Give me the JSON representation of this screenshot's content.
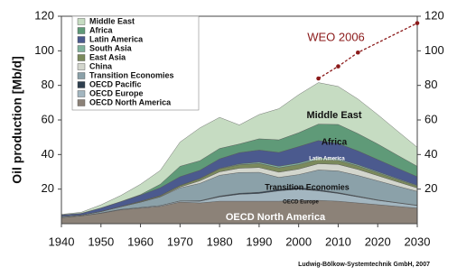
{
  "chart_data": {
    "type": "stacked_area",
    "ylabel": "Oil production [Mb/d]",
    "source": "Ludwig-Bölkow-Systemtechnik GmbH, 2007",
    "x": [
      1940,
      1945,
      1950,
      1955,
      1960,
      1965,
      1970,
      1975,
      1980,
      1985,
      1990,
      1995,
      2000,
      2005,
      2010,
      2015,
      2020,
      2025,
      2030
    ],
    "xlim": [
      1940,
      2030
    ],
    "xticks": [
      1940,
      1950,
      1960,
      1970,
      1980,
      1990,
      2000,
      2010,
      2020,
      2030
    ],
    "ylim": [
      0,
      120
    ],
    "yticks": [
      20,
      40,
      60,
      80,
      100,
      120
    ],
    "y2lim": [
      0,
      120
    ],
    "y2ticks": [
      20,
      40,
      60,
      80,
      100,
      120
    ],
    "legend": "upper left",
    "series": [
      {
        "name": "OECD North America",
        "color": "#8c8278",
        "values": [
          3.5,
          4.5,
          6,
          8,
          9,
          10,
          12.5,
          12,
          13,
          13,
          13,
          13,
          13.5,
          13.5,
          13,
          12,
          11,
          10,
          9
        ]
      },
      {
        "name": "OECD Europe",
        "color": "#a3b6c0",
        "values": [
          0.1,
          0.1,
          0.2,
          0.3,
          0.4,
          0.5,
          0.6,
          1,
          2.5,
          4,
          4.5,
          6,
          6.5,
          5.5,
          4.5,
          3.5,
          2.5,
          2,
          1.5
        ]
      },
      {
        "name": "OECD Pacific",
        "color": "#2e3f4f",
        "values": [
          0,
          0,
          0,
          0,
          0,
          0,
          0.1,
          0.3,
          0.5,
          0.6,
          0.7,
          0.8,
          0.9,
          0.6,
          0.5,
          0.4,
          0.3,
          0.2,
          0.2
        ]
      },
      {
        "name": "Transition Economies",
        "color": "#8ba1a9",
        "values": [
          0.6,
          0.4,
          0.8,
          1.5,
          3,
          5,
          7.5,
          10,
          12,
          12,
          11.5,
          7,
          7.5,
          11.5,
          12.5,
          12,
          11,
          9.5,
          8
        ]
      },
      {
        "name": "China",
        "color": "#d3d6cd",
        "values": [
          0,
          0,
          0,
          0,
          0.1,
          0.2,
          0.5,
          1.5,
          2,
          2.5,
          2.8,
          3,
          3.2,
          3.6,
          3.8,
          3.5,
          3,
          2.5,
          2
        ]
      },
      {
        "name": "East Asia",
        "color": "#7b8a5c",
        "values": [
          0.1,
          0,
          0.1,
          0.2,
          0.4,
          0.5,
          0.8,
          1.2,
          1.7,
          2,
          2.3,
          2.5,
          2.6,
          2.5,
          2.3,
          2,
          1.7,
          1.4,
          1.1
        ]
      },
      {
        "name": "South Asia",
        "color": "#80b29c",
        "values": [
          0,
          0,
          0,
          0,
          0.1,
          0.1,
          0.2,
          0.2,
          0.3,
          0.5,
          0.8,
          0.9,
          0.9,
          0.9,
          0.8,
          0.7,
          0.6,
          0.5,
          0.4
        ]
      },
      {
        "name": "Latin America",
        "color": "#4b5a8e",
        "values": [
          0.8,
          1,
          2,
          2.7,
          3.5,
          4.5,
          5,
          4.7,
          5.5,
          6.5,
          7,
          8,
          9.5,
          10,
          9,
          8,
          7,
          6,
          5
        ]
      },
      {
        "name": "Africa",
        "color": "#5f9a78",
        "values": [
          0,
          0,
          0,
          0.1,
          0.3,
          2,
          6,
          5.5,
          6,
          5,
          6.5,
          7.3,
          8,
          9.5,
          11,
          10,
          9,
          7.5,
          6
        ]
      },
      {
        "name": "Middle East",
        "color": "#c6dcc2",
        "values": [
          0.3,
          0.6,
          1.8,
          3.5,
          6,
          8,
          14,
          19,
          18,
          11,
          14,
          18,
          22,
          24,
          22,
          20,
          17,
          14,
          11
        ]
      }
    ],
    "projection": {
      "name": "WEO 2006",
      "color": "#8b1a1a",
      "x": [
        2005,
        2010,
        2015,
        2030
      ],
      "values": [
        84,
        91,
        99,
        116
      ]
    },
    "annotations": [
      "Middle East",
      "Africa",
      "Latin America",
      "Transition Economies",
      "OECD Europe",
      "OECD North America"
    ]
  }
}
